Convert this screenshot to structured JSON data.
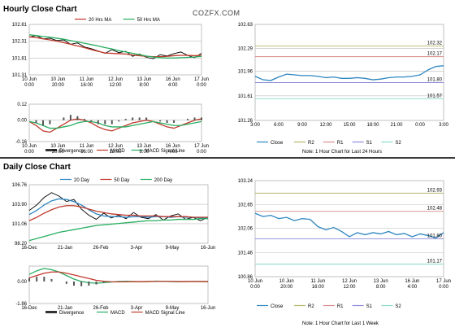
{
  "header": {
    "hourly_title": "Hourly Close Chart",
    "daily_title": "Daily Close Chart",
    "brand": "COZFX.COM"
  },
  "chart_data": [
    {
      "id": "hourly_price",
      "type": "line",
      "title": "",
      "y_ticks": [
        "102.81",
        "102.31",
        "101.81",
        "101.31"
      ],
      "ylim": [
        101.31,
        102.81
      ],
      "x_ticks": [
        "10 Jun\n0:00",
        "10 Jun\n20:00",
        "11 Jun\n16:00",
        "12 Jun\n12:00",
        "13 Jun\n8:00",
        "16 Jun\n4:00",
        "17 Jun\n0:00"
      ],
      "legend": [
        "20 Hrs MA",
        "50 Hrs MA"
      ],
      "series": [
        {
          "name": "Close",
          "color": "#000000",
          "values": [
            102.43,
            102.48,
            102.38,
            102.4,
            102.33,
            102.35,
            102.22,
            102.26,
            102.14,
            102.09,
            102.02,
            101.95,
            102.06,
            101.97,
            102.01,
            101.86,
            101.93,
            101.83,
            101.79,
            101.91,
            101.87,
            101.94,
            101.99,
            101.89,
            101.82,
            101.95
          ]
        },
        {
          "name": "20 Hrs MA",
          "color": "#c0392b",
          "values": [
            102.44,
            102.42,
            102.38,
            102.35,
            102.31,
            102.27,
            102.22,
            102.17,
            102.12,
            102.06,
            102.01,
            101.96,
            101.95,
            101.94,
            101.93,
            101.9,
            101.88,
            101.86,
            101.85,
            101.85,
            101.86,
            101.88,
            101.89,
            101.89,
            101.88,
            101.89
          ]
        },
        {
          "name": "50 Hrs MA",
          "color": "#27ae60",
          "values": [
            102.5,
            102.48,
            102.45,
            102.43,
            102.4,
            102.37,
            102.33,
            102.29,
            102.25,
            102.21,
            102.17,
            102.12,
            102.08,
            102.03,
            101.99,
            101.95,
            101.91,
            101.87,
            101.84,
            101.82,
            101.81,
            101.81,
            101.82,
            101.83,
            101.84,
            101.86
          ]
        }
      ]
    },
    {
      "id": "hourly_macd",
      "type": "line",
      "y_ticks": [
        "0.12",
        "0.00",
        "-0.16"
      ],
      "ylim": [
        -0.16,
        0.12
      ],
      "x_ticks": [
        "10 Jun\n0:00",
        "10 Jun\n20:00",
        "11 Jun\n16:00",
        "12 Jun\n12:00",
        "13 Jun\n8:00",
        "16 Jun\n4:00",
        "17 Jun\n0:00"
      ],
      "legend": [
        "Divergence",
        "MACD",
        "MACD Signal Line"
      ],
      "series": [
        {
          "name": "MACD",
          "color": "#c0392b",
          "values": [
            -0.01,
            -0.04,
            -0.08,
            -0.09,
            -0.06,
            -0.03,
            0.0,
            0.01,
            0.0,
            -0.02,
            -0.05,
            -0.07,
            -0.08,
            -0.06,
            -0.04,
            -0.02,
            -0.01,
            0.0,
            -0.01,
            -0.03,
            -0.05,
            -0.06,
            -0.04,
            -0.02,
            0.0,
            0.01
          ]
        },
        {
          "name": "MACD Signal Line",
          "color": "#27ae60",
          "values": [
            -0.01,
            -0.02,
            -0.04,
            -0.06,
            -0.06,
            -0.05,
            -0.04,
            -0.02,
            -0.01,
            -0.01,
            -0.02,
            -0.04,
            -0.05,
            -0.05,
            -0.05,
            -0.04,
            -0.03,
            -0.02,
            -0.01,
            -0.02,
            -0.03,
            -0.04,
            -0.04,
            -0.03,
            -0.02,
            -0.01
          ]
        },
        {
          "name": "Divergence",
          "color": "#333333",
          "values": [
            0.0,
            -0.02,
            -0.04,
            -0.03,
            0.0,
            0.02,
            0.04,
            0.03,
            0.01,
            -0.01,
            -0.03,
            -0.03,
            -0.03,
            -0.01,
            0.01,
            0.02,
            0.02,
            0.02,
            0.0,
            -0.01,
            -0.02,
            -0.02,
            0.0,
            0.01,
            0.02,
            0.02
          ]
        }
      ]
    },
    {
      "id": "last24h",
      "type": "line",
      "y_ticks": [
        "102.63",
        "102.29",
        "101.96",
        "101.61",
        "101.26"
      ],
      "ylim": [
        101.26,
        102.63
      ],
      "x_ticks": [
        "3:00",
        "6:00",
        "9:00",
        "12:00",
        "15:00",
        "18:00",
        "21:00",
        "0:00",
        "3:00"
      ],
      "levels": [
        {
          "name": "R2",
          "value": 102.32,
          "label": "102.32",
          "color": "#b5b56b"
        },
        {
          "name": "R1",
          "value": 102.17,
          "label": "102.17",
          "color": "#d98a8a"
        },
        {
          "name": "S1",
          "value": 101.8,
          "label": "101.80",
          "color": "#8a8ad9"
        },
        {
          "name": "S2",
          "value": 101.57,
          "label": "101.57",
          "color": "#8ad9c9"
        }
      ],
      "legend": [
        "Close",
        "R2",
        "R1",
        "S1",
        "S2"
      ],
      "series": [
        {
          "name": "Close",
          "color": "#2e86c1",
          "values": [
            101.89,
            101.84,
            101.83,
            101.88,
            101.92,
            101.91,
            101.9,
            101.9,
            101.89,
            101.87,
            101.88,
            101.86,
            101.86,
            101.87,
            101.86,
            101.84,
            101.85,
            101.87,
            101.88,
            101.88,
            101.89,
            101.91,
            101.98,
            102.03,
            102.04
          ]
        }
      ],
      "note": "Note: 1 Hour Chart for Last 24 Hours"
    },
    {
      "id": "daily_price",
      "type": "line",
      "y_ticks": [
        "106.76",
        "103.90",
        "101.06",
        "98.20"
      ],
      "ylim": [
        98.2,
        106.76
      ],
      "x_ticks": [
        "16-Dec",
        "21-Jan",
        "26-Feb",
        "3-Apr",
        "9-May",
        "16-Jun"
      ],
      "legend": [
        "20 Day",
        "50 Day",
        "200 Day"
      ],
      "series": [
        {
          "name": "Close",
          "color": "#000000",
          "values": [
            103.0,
            103.8,
            104.9,
            105.6,
            105.1,
            104.3,
            104.6,
            103.2,
            102.3,
            101.7,
            102.6,
            101.9,
            102.3,
            101.8,
            102.7,
            102.0,
            101.8,
            102.4,
            101.6,
            102.2,
            102.5,
            101.7,
            102.0,
            101.5,
            102.0
          ]
        },
        {
          "name": "20 Day",
          "color": "#2e86c1",
          "values": [
            102.4,
            103.0,
            103.8,
            104.4,
            104.7,
            104.6,
            104.3,
            103.8,
            103.1,
            102.5,
            102.2,
            102.1,
            102.1,
            102.0,
            102.1,
            102.1,
            102.0,
            102.1,
            102.1,
            102.0,
            102.1,
            102.0,
            102.0,
            101.9,
            101.9
          ]
        },
        {
          "name": "50 Day",
          "color": "#c0392b",
          "values": [
            101.5,
            102.0,
            102.6,
            103.1,
            103.5,
            103.7,
            103.7,
            103.5,
            103.2,
            102.9,
            102.7,
            102.5,
            102.4,
            102.3,
            102.3,
            102.2,
            102.2,
            102.2,
            102.1,
            102.1,
            102.1,
            102.1,
            102.0,
            102.0,
            102.0
          ]
        },
        {
          "name": "200 Day",
          "color": "#27ae60",
          "values": [
            98.6,
            98.9,
            99.2,
            99.5,
            99.8,
            100.0,
            100.2,
            100.4,
            100.6,
            100.8,
            100.9,
            101.0,
            101.1,
            101.2,
            101.3,
            101.4,
            101.5,
            101.5,
            101.6,
            101.6,
            101.7,
            101.7,
            101.7,
            101.8,
            101.8
          ]
        }
      ]
    },
    {
      "id": "daily_macd",
      "type": "line",
      "y_ticks": [
        "0.00",
        "-1.86"
      ],
      "ylim": [
        -1.86,
        1.3
      ],
      "x_ticks": [
        "16-Dec",
        "21-Jan",
        "26-Feb",
        "3-Apr",
        "9-May",
        "16-Jun"
      ],
      "legend": [
        "Divergence",
        "MACD",
        "MACD Signal Line"
      ],
      "series": [
        {
          "name": "MACD",
          "color": "#27ae60",
          "values": [
            0.6,
            0.9,
            1.1,
            1.0,
            0.8,
            0.5,
            0.2,
            0.0,
            -0.1,
            -0.15,
            -0.1,
            -0.05,
            0.0,
            0.02,
            0.0,
            -0.02,
            0.0,
            0.03,
            0.02,
            0.0,
            -0.02,
            0.0,
            0.01,
            0.0,
            -0.01
          ]
        },
        {
          "name": "MACD Signal Line",
          "color": "#c0392b",
          "values": [
            0.3,
            0.5,
            0.7,
            0.8,
            0.8,
            0.7,
            0.55,
            0.4,
            0.25,
            0.1,
            0.02,
            -0.02,
            -0.03,
            -0.02,
            -0.01,
            -0.01,
            0.0,
            0.01,
            0.01,
            0.01,
            0.0,
            0.0,
            0.0,
            0.0,
            0.0
          ]
        },
        {
          "name": "Divergence",
          "color": "#333333",
          "values": [
            0.3,
            0.4,
            0.4,
            0.2,
            0.0,
            -0.2,
            -0.35,
            -0.4,
            -0.35,
            -0.25,
            -0.12,
            -0.03,
            0.03,
            0.04,
            0.01,
            -0.01,
            0.0,
            0.02,
            0.01,
            -0.01,
            -0.02,
            0.0,
            0.01,
            0.0,
            -0.01
          ]
        }
      ]
    },
    {
      "id": "last_week",
      "type": "line",
      "y_ticks": [
        "103.24",
        "102.65",
        "102.06",
        "101.46",
        "100.86"
      ],
      "ylim": [
        100.86,
        103.24
      ],
      "x_ticks": [
        "10 Jun\n0:00",
        "10 Jun\n20:00",
        "11 Jun\n16:00",
        "12 Jun\n12:00",
        "13 Jun\n8:00",
        "16 Jun\n4:00",
        "17 Jun\n0:00"
      ],
      "levels": [
        {
          "name": "R2",
          "value": 102.93,
          "label": "102.93",
          "color": "#b5b56b"
        },
        {
          "name": "R1",
          "value": 102.48,
          "label": "102.48",
          "color": "#d98a8a"
        },
        {
          "name": "S1",
          "value": 101.8,
          "label": "101.80",
          "color": "#8a8ad9"
        },
        {
          "name": "S2",
          "value": 101.17,
          "label": "101.17",
          "color": "#8ad9c9"
        }
      ],
      "legend": [
        "Close",
        "R2",
        "R1",
        "S1",
        "S2"
      ],
      "series": [
        {
          "name": "Close",
          "color": "#2e86c1",
          "values": [
            102.43,
            102.35,
            102.38,
            102.3,
            102.33,
            102.25,
            102.3,
            102.28,
            102.1,
            102.02,
            102.08,
            101.98,
            101.85,
            101.95,
            101.9,
            101.95,
            101.92,
            101.98,
            101.9,
            101.93,
            101.85,
            101.92,
            101.88,
            101.82,
            101.95
          ]
        }
      ],
      "note": "Note: 1 Hour Chart for Last 1 Week"
    }
  ]
}
